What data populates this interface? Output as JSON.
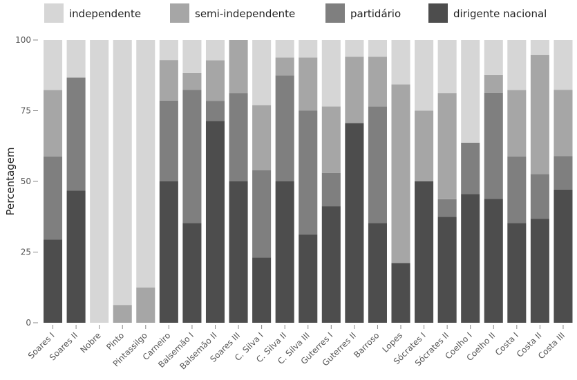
{
  "chart_data": {
    "type": "bar",
    "stacked": true,
    "ylabel": "Percentagem",
    "ylim": [
      0,
      100
    ],
    "yticks": [
      0,
      25,
      50,
      75,
      100
    ],
    "grid": false,
    "legend_position": "top",
    "categories": [
      "Soares I",
      "Soares II",
      "Nobre",
      "Pinto",
      "Pintassilgo",
      "Carneiro",
      "Balsemão I",
      "Balsemão II",
      "Soares III",
      "C. Silva I",
      "C. Silva II",
      "C. Silva III",
      "Guterres I",
      "Guterres II",
      "Barroso",
      "Lopes",
      "Sócrates I",
      "Sócrates II",
      "Coelho I",
      "Coelho II",
      "Costa I",
      "Costa II",
      "Costa III"
    ],
    "series": [
      {
        "name": "dirigente nacional",
        "color": "#4d4d4d",
        "values": [
          29.4,
          46.7,
          0,
          0,
          0,
          50.0,
          35.3,
          71.4,
          50.0,
          23.1,
          50.0,
          31.2,
          41.2,
          70.6,
          35.3,
          21.1,
          50.0,
          37.5,
          45.5,
          43.8,
          35.3,
          36.8,
          47.1
        ]
      },
      {
        "name": "partidário",
        "color": "#7f7f7f",
        "values": [
          29.4,
          40.0,
          0,
          0,
          0,
          28.6,
          47.1,
          7.1,
          31.2,
          30.8,
          37.5,
          43.8,
          11.8,
          0,
          41.2,
          0,
          0,
          6.2,
          18.2,
          37.5,
          23.5,
          15.8,
          11.8
        ]
      },
      {
        "name": "semi-independente",
        "color": "#a6a6a6",
        "values": [
          23.5,
          0,
          0,
          6.3,
          12.5,
          14.3,
          5.9,
          14.3,
          18.8,
          23.1,
          6.3,
          18.8,
          23.5,
          23.5,
          17.6,
          63.2,
          25.0,
          37.5,
          0,
          6.3,
          23.5,
          42.1,
          23.5
        ]
      },
      {
        "name": "independente",
        "color": "#d6d6d6",
        "values": [
          17.7,
          13.3,
          100,
          93.7,
          87.5,
          7.1,
          11.7,
          7.2,
          0,
          23.0,
          6.2,
          6.2,
          23.5,
          5.9,
          5.9,
          15.7,
          25.0,
          18.8,
          36.3,
          12.4,
          17.7,
          5.3,
          17.6
        ]
      }
    ]
  }
}
